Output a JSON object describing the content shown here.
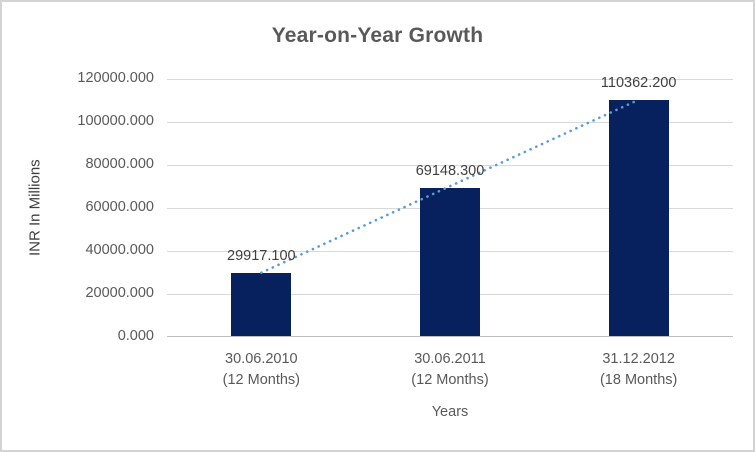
{
  "chart_data": {
    "type": "bar",
    "title": "Year-on-Year Growth",
    "xlabel": "Years",
    "ylabel": "INR In Millions",
    "categories": [
      [
        "30.06.2010",
        "(12 Months)"
      ],
      [
        "30.06.2011",
        "(12 Months)"
      ],
      [
        "31.12.2012",
        "(18 Months)"
      ]
    ],
    "values": [
      29917.1,
      69148.3,
      110362.2
    ],
    "data_labels": [
      "29917.100",
      "69148.300",
      "110362.200"
    ],
    "y_ticks": [
      "0.000",
      "20000.000",
      "40000.000",
      "60000.000",
      "80000.000",
      "100000.000",
      "120000.000"
    ],
    "ylim": [
      0,
      120000
    ],
    "y_step": 20000,
    "grid": true,
    "legend": false,
    "bar_color": "#06215e",
    "trendline": {
      "type": "linear",
      "style": "dotted",
      "color": "#5b9bd5",
      "from": "30.06.2010 (12 Months)",
      "to": "31.12.2012 (18 Months)"
    },
    "colors": {
      "gridline": "#d9d9d9",
      "axis_line": "#bfbfbf",
      "title_text": "#595959",
      "tick_text": "#595959",
      "data_label_text": "#404040",
      "frame_border": "#d3d3d3",
      "background": "#ffffff"
    }
  }
}
